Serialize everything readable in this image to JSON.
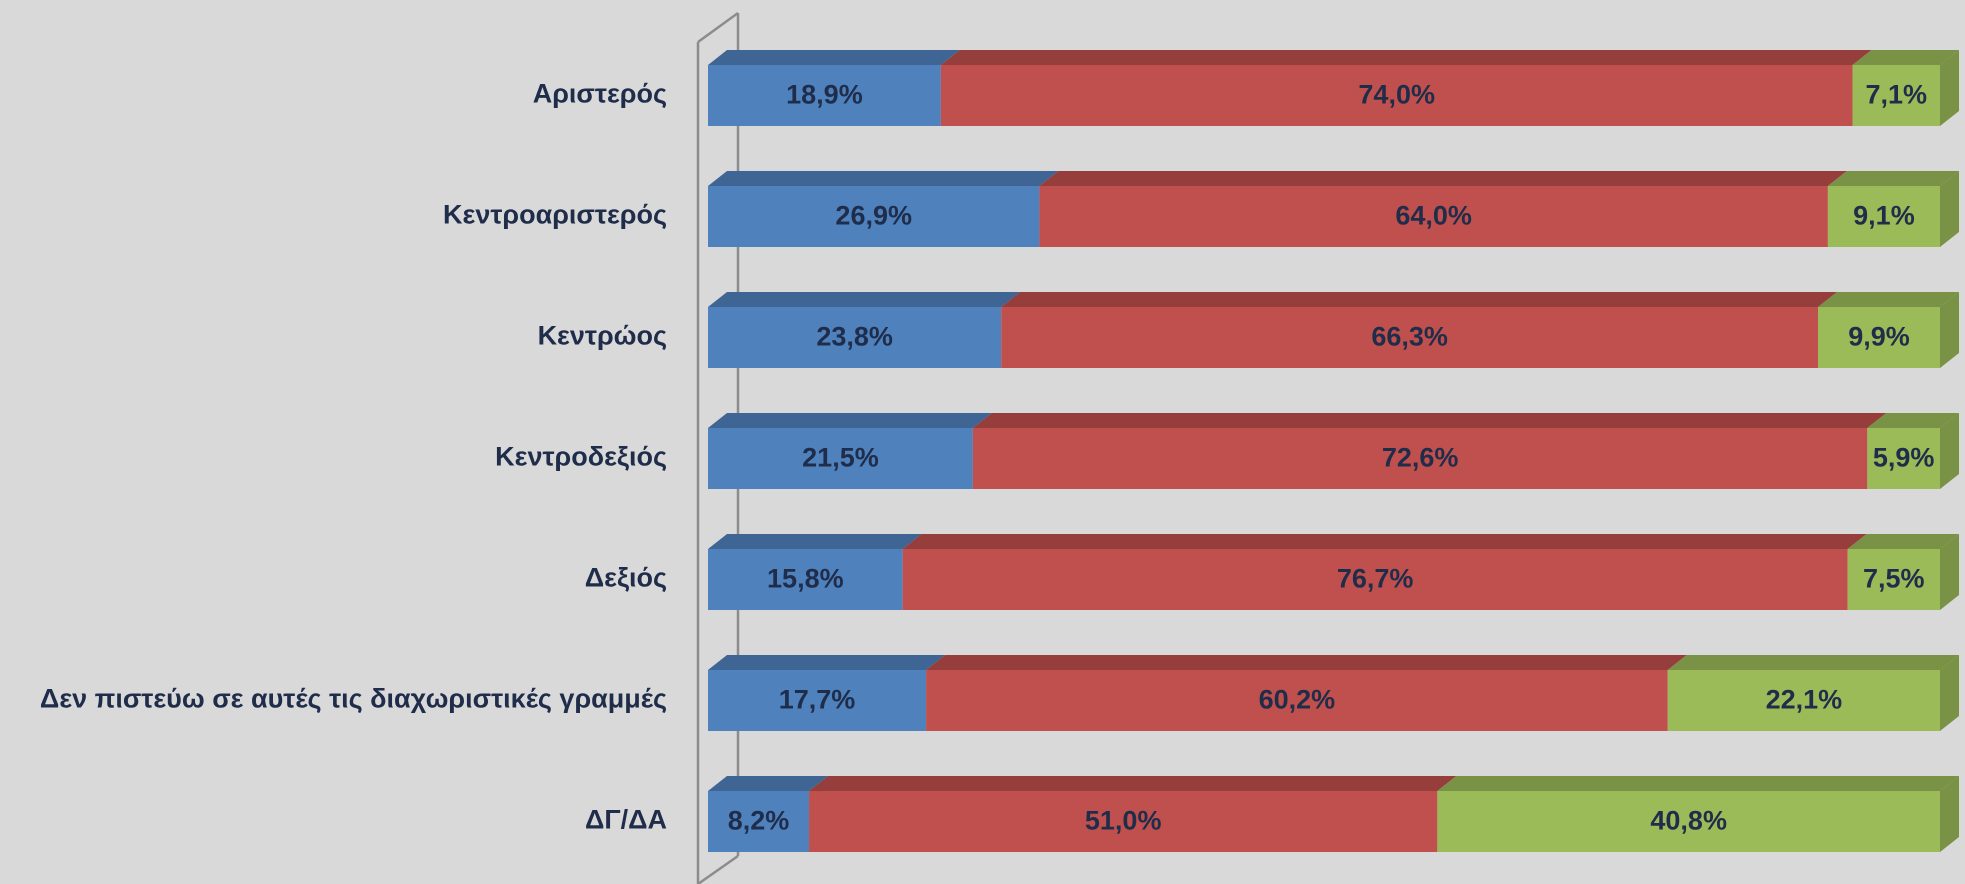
{
  "chart_data": {
    "type": "stacked_bar_horizontal_3d",
    "categories": [
      "Αριστερός",
      "Κεντροαριστερός",
      "Κεντρώος",
      "Κεντροδεξιός",
      "Δεξιός",
      "Δεν πιστεύω σε αυτές τις διαχωριστικές γραμμές",
      "ΔΓ/ΔΑ"
    ],
    "series": [
      {
        "color": "#4f81bd",
        "values": [
          18.9,
          26.9,
          23.8,
          21.5,
          15.8,
          17.7,
          8.2
        ],
        "value_labels": [
          "18,9%",
          "26,9%",
          "23,8%",
          "21,5%",
          "15,8%",
          "17,7%",
          "8,2%"
        ]
      },
      {
        "color": "#c0504d",
        "values": [
          74.0,
          64.0,
          66.3,
          72.6,
          76.7,
          60.2,
          51.0
        ],
        "value_labels": [
          "74,0%",
          "64,0%",
          "66,3%",
          "72,6%",
          "76,7%",
          "60,2%",
          "51,0%"
        ]
      },
      {
        "color": "#9bbb59",
        "values": [
          7.1,
          9.1,
          9.9,
          5.9,
          7.5,
          22.1,
          40.8
        ],
        "value_labels": [
          "7,1%",
          "9,1%",
          "9,9%",
          "5,9%",
          "7,5%",
          "22,1%",
          "40,8%"
        ]
      }
    ],
    "xlim": [
      0,
      100
    ]
  }
}
